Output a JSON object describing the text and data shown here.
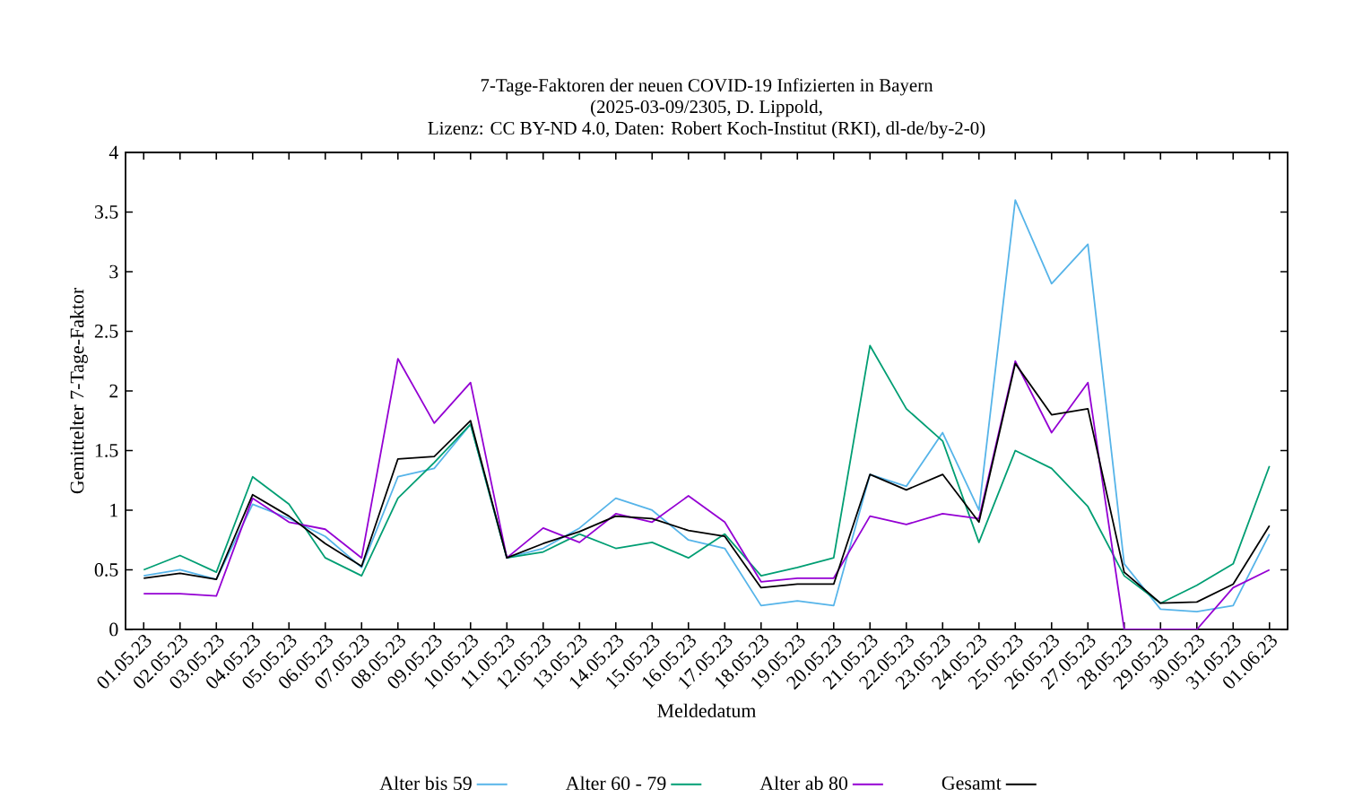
{
  "chart_data": {
    "type": "line",
    "title": "7-Tage-Faktoren der neuen COVID-19 Infizierten in Bayern",
    "subtitle": "(2025-03-09/2305, D. Lippold,",
    "annotations": [
      "Lizenz: CC BY-ND 4.0, Daten: Robert Koch-Institut (RKI), dl-de/by-2-0)"
    ],
    "xlabel": "Meldedatum",
    "ylabel": "Gemittelter 7-Tage-Faktor",
    "categories": [
      "01.05.23",
      "02.05.23",
      "03.05.23",
      "04.05.23",
      "05.05.23",
      "06.05.23",
      "07.05.23",
      "08.05.23",
      "09.05.23",
      "10.05.23",
      "11.05.23",
      "12.05.23",
      "13.05.23",
      "14.05.23",
      "15.05.23",
      "16.05.23",
      "17.05.23",
      "18.05.23",
      "19.05.23",
      "20.05.23",
      "21.05.23",
      "22.05.23",
      "23.05.23",
      "24.05.23",
      "25.05.23",
      "26.05.23",
      "27.05.23",
      "28.05.23",
      "29.05.23",
      "30.05.23",
      "31.05.23",
      "01.06.23"
    ],
    "ylim": [
      0,
      4
    ],
    "yticks": [
      0,
      0.5,
      1,
      1.5,
      2,
      2.5,
      3,
      3.5,
      4
    ],
    "legend": "bottom",
    "series": [
      {
        "name": "Alter bis 59",
        "color": "#56b4e9",
        "values": [
          0.45,
          0.5,
          0.42,
          1.05,
          0.93,
          0.78,
          0.52,
          1.28,
          1.35,
          1.72,
          0.6,
          0.68,
          0.85,
          1.1,
          1.0,
          0.75,
          0.68,
          0.2,
          0.24,
          0.2,
          1.3,
          1.2,
          1.65,
          1.0,
          3.6,
          2.9,
          3.23,
          0.55,
          0.17,
          0.15,
          0.2,
          0.8
        ]
      },
      {
        "name": "Alter 60 - 79",
        "color": "#009e73",
        "values": [
          0.5,
          0.62,
          0.48,
          1.28,
          1.05,
          0.6,
          0.45,
          1.1,
          1.4,
          1.72,
          0.6,
          0.65,
          0.8,
          0.68,
          0.73,
          0.6,
          0.8,
          0.45,
          0.52,
          0.6,
          2.38,
          1.85,
          1.58,
          0.73,
          1.5,
          1.35,
          1.03,
          0.45,
          0.22,
          0.37,
          0.55,
          1.37
        ]
      },
      {
        "name": "Alter ab 80",
        "color": "#9400d3",
        "values": [
          0.3,
          0.3,
          0.28,
          1.1,
          0.9,
          0.84,
          0.6,
          2.27,
          1.73,
          2.07,
          0.6,
          0.85,
          0.73,
          0.97,
          0.9,
          1.12,
          0.9,
          0.4,
          0.43,
          0.43,
          0.95,
          0.88,
          0.97,
          0.93,
          2.25,
          1.65,
          2.07,
          0,
          0,
          0,
          0.35,
          0.5
        ]
      },
      {
        "name": "Gesamt",
        "color": "#000000",
        "values": [
          0.43,
          0.47,
          0.42,
          1.13,
          0.95,
          0.72,
          0.53,
          1.43,
          1.45,
          1.75,
          0.6,
          0.72,
          0.82,
          0.95,
          0.93,
          0.83,
          0.78,
          0.35,
          0.38,
          0.38,
          1.3,
          1.17,
          1.3,
          0.9,
          2.23,
          1.8,
          1.85,
          0.48,
          0.22,
          0.23,
          0.38,
          0.87
        ]
      }
    ]
  }
}
